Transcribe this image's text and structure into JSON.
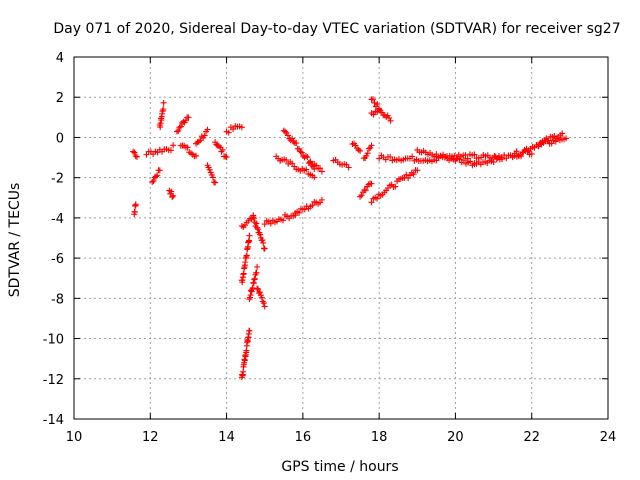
{
  "chart_data": {
    "type": "scatter",
    "title": "Day 071 of 2020, Sidereal Day-to-day VTEC variation (SDTVAR) for receiver sg27",
    "xlabel": "GPS time / hours",
    "ylabel": "SDTVAR / TECUs",
    "xlim": [
      10,
      24
    ],
    "ylim": [
      -14,
      4
    ],
    "xticks": [
      "10",
      "12",
      "14",
      "16",
      "18",
      "20",
      "22",
      "24"
    ],
    "yticks": [
      "-14",
      "-12",
      "-10",
      "-8",
      "-6",
      "-4",
      "-2",
      "0",
      "2",
      "4"
    ],
    "grid": true,
    "marker": "+",
    "color": "#ff0000",
    "segments": [
      {
        "x": [
          11.55,
          11.65
        ],
        "y": [
          -0.7,
          -0.9
        ]
      },
      {
        "x": [
          11.58,
          11.62
        ],
        "y": [
          -3.8,
          -3.3
        ]
      },
      {
        "x": [
          11.9,
          12.6
        ],
        "y": [
          -0.8,
          -0.5
        ]
      },
      {
        "x": [
          12.25,
          12.35
        ],
        "y": [
          0.5,
          1.6
        ]
      },
      {
        "x": [
          12.05,
          12.25
        ],
        "y": [
          -2.2,
          -1.6
        ]
      },
      {
        "x": [
          12.5,
          12.6
        ],
        "y": [
          -2.6,
          -3.0
        ]
      },
      {
        "x": [
          12.7,
          13.0
        ],
        "y": [
          0.3,
          1.1
        ]
      },
      {
        "x": [
          12.8,
          13.2
        ],
        "y": [
          -0.3,
          -1.0
        ]
      },
      {
        "x": [
          13.2,
          13.5
        ],
        "y": [
          -0.3,
          0.3
        ]
      },
      {
        "x": [
          13.5,
          13.7
        ],
        "y": [
          -1.5,
          -2.2
        ]
      },
      {
        "x": [
          13.7,
          14.0
        ],
        "y": [
          -0.2,
          -1.0
        ]
      },
      {
        "x": [
          14.0,
          14.4
        ],
        "y": [
          0.3,
          0.6
        ]
      },
      {
        "x": [
          14.4,
          14.6
        ],
        "y": [
          -12.0,
          -9.5
        ]
      },
      {
        "x": [
          14.6,
          14.8
        ],
        "y": [
          -8.0,
          -6.5
        ]
      },
      {
        "x": [
          14.8,
          15.0
        ],
        "y": [
          -7.5,
          -8.3
        ]
      },
      {
        "x": [
          14.4,
          14.6
        ],
        "y": [
          -7.2,
          -5.0
        ]
      },
      {
        "x": [
          14.4,
          14.7
        ],
        "y": [
          -4.5,
          -4.0
        ]
      },
      {
        "x": [
          14.7,
          15.0
        ],
        "y": [
          -4.0,
          -5.5
        ]
      },
      {
        "x": [
          15.0,
          15.8
        ],
        "y": [
          -4.3,
          -3.8
        ]
      },
      {
        "x": [
          15.8,
          16.5
        ],
        "y": [
          -3.8,
          -3.1
        ]
      },
      {
        "x": [
          15.5,
          16.3
        ],
        "y": [
          0.4,
          -1.5
        ]
      },
      {
        "x": [
          15.3,
          16.3
        ],
        "y": [
          -1.0,
          -1.9
        ]
      },
      {
        "x": [
          16.2,
          16.5
        ],
        "y": [
          -1.3,
          -1.6
        ]
      },
      {
        "x": [
          16.8,
          17.2
        ],
        "y": [
          -1.2,
          -1.4
        ]
      },
      {
        "x": [
          17.3,
          17.5
        ],
        "y": [
          -0.3,
          -0.7
        ]
      },
      {
        "x": [
          17.6,
          17.8
        ],
        "y": [
          -1.0,
          -0.5
        ]
      },
      {
        "x": [
          17.8,
          18.3
        ],
        "y": [
          1.9,
          0.8
        ]
      },
      {
        "x": [
          17.8,
          18.0
        ],
        "y": [
          1.2,
          1.4
        ]
      },
      {
        "x": [
          17.5,
          17.8
        ],
        "y": [
          -2.9,
          -2.2
        ]
      },
      {
        "x": [
          17.8,
          19.0
        ],
        "y": [
          -3.1,
          -1.6
        ]
      },
      {
        "x": [
          18.0,
          19.5
        ],
        "y": [
          -1.0,
          -1.1
        ]
      },
      {
        "x": [
          19.0,
          20.5
        ],
        "y": [
          -0.7,
          -1.3
        ]
      },
      {
        "x": [
          19.5,
          21.2
        ],
        "y": [
          -0.9,
          -1.0
        ]
      },
      {
        "x": [
          20.5,
          22.0
        ],
        "y": [
          -1.3,
          -0.7
        ]
      },
      {
        "x": [
          21.5,
          22.8
        ],
        "y": [
          -0.9,
          0.2
        ]
      },
      {
        "x": [
          22.2,
          22.9
        ],
        "y": [
          -0.4,
          0.0
        ]
      }
    ]
  }
}
